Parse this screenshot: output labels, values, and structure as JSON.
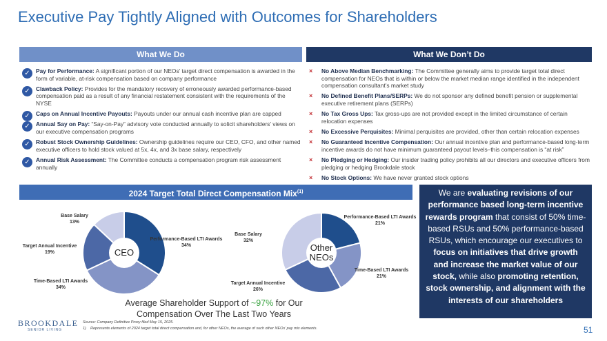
{
  "header": {
    "title": "Executive Pay Tightly Aligned with Outcomes for Shareholders"
  },
  "do": {
    "heading": "What We Do",
    "items": [
      {
        "term": "Pay for Performance:",
        "text": "A significant portion of our NEOs’ target direct compensation is awarded in the form of variable, at-risk compensation based on company performance"
      },
      {
        "term": "Clawback Policy:",
        "text": "Provides for the mandatory recovery of erroneously awarded performance-based compensation paid as a result of any financial restatement consistent with the requirements of the NYSE"
      },
      {
        "term": "Caps on Annual Incentive Payouts:",
        "text": "Payouts under our annual cash incentive plan are capped"
      },
      {
        "term": "Annual Say on Pay:",
        "text": "“Say-on-Pay” advisory vote conducted annually to solicit shareholders’ views on our executive compensation programs"
      },
      {
        "term": "Robust Stock Ownership Guidelines:",
        "text": "Ownership guidelines require our CEO, CFO, and other named executive officers to hold stock valued at 5x, 4x, and 3x base salary, respectively"
      },
      {
        "term": "Annual Risk Assessment:",
        "text": "The Committee conducts a compensation program risk assessment annually"
      }
    ]
  },
  "dont": {
    "heading": "What We Don’t Do",
    "items": [
      {
        "term": "No Above Median Benchmarking:",
        "text": "The Committee generally aims to provide target total direct compensation for NEOs that is within or below the market median range identified in the independent compensation consultant’s market study"
      },
      {
        "term": "No Defined Benefit Plans/SERPs:",
        "text": "We do not sponsor any defined benefit pension or supplemental executive retirement plans (SERPs)"
      },
      {
        "term": "No Tax Gross Ups:",
        "text": "Tax gross-ups are not provided except in the limited circumstance of certain relocation expenses"
      },
      {
        "term": "No Excessive Perquisites:",
        "text": "Minimal perquisites are provided, other than certain relocation expenses"
      },
      {
        "term": "No Guaranteed Incentive Compensation:",
        "text": "Our annual incentive plan and performance-based long-term incentive awards do not have minimum guaranteed payout levels–this compensation is “at risk”"
      },
      {
        "term": "No Pledging or Hedging:",
        "text": "Our insider trading policy prohibits all our directors and executive officers from pledging or hedging Brookdale stock"
      },
      {
        "term": "No Stock Options:",
        "text": "We have never granted stock options"
      }
    ]
  },
  "mix": {
    "title": "2024 Target Total Direct Compensation Mix",
    "note": "(1)"
  },
  "chart_data": [
    {
      "type": "pie",
      "center_label": "CEO",
      "categories": [
        "Performance-Based LTI Awards",
        "Time-Based LTI Awards",
        "Target Annual Incentive",
        "Base Salary"
      ],
      "values": [
        34,
        34,
        19,
        13
      ],
      "value_labels": [
        "34%",
        "34%",
        "19%",
        "13%"
      ],
      "colors": [
        "#1f4e8c",
        "#8494c6",
        "#4c68a6",
        "#c8cde8"
      ]
    },
    {
      "type": "pie",
      "center_label": "Other NEOs",
      "categories": [
        "Performance-Based LTI Awards",
        "Time-Based LTI Awards",
        "Target Annual Incentive",
        "Base Salary"
      ],
      "values": [
        21,
        21,
        26,
        32
      ],
      "value_labels": [
        "21%",
        "21%",
        "26%",
        "32%"
      ],
      "colors": [
        "#1f4e8c",
        "#8494c6",
        "#4c68a6",
        "#c8cde8"
      ]
    }
  ],
  "caption": {
    "segments": [
      {
        "text": "Average Shareholder Support of ",
        "highlight": false
      },
      {
        "text": "~97%",
        "highlight": true
      },
      {
        "text": " for Our Compensation Over The Last Two Years",
        "highlight": false
      }
    ]
  },
  "callout": {
    "segments": [
      {
        "text": "We are ",
        "bold": false
      },
      {
        "text": "evaluating revisions of our performance based long-term incentive rewards program",
        "bold": true
      },
      {
        "text": " that consist of 50% time-based RSUs and 50% performance-based RSUs, which encourage our executives to ",
        "bold": false
      },
      {
        "text": "focus on initiatives that drive growth and increase the market value of our stock,",
        "bold": true
      },
      {
        "text": " while also ",
        "bold": false
      },
      {
        "text": "promoting retention, stock ownership, and alignment with the interests of our shareholders",
        "bold": true
      }
    ]
  },
  "footer": {
    "logo": "BROOKDALE",
    "logo_sub": "SENIOR LIVING",
    "source": "Source: Company Definitive Proxy filed May 15, 2025.",
    "footnote_num": "1)",
    "footnote": "Represents elements of 2024 target total direct compensation and, for other NEOs, the average of such other NEOs’ pay mix elements.",
    "page": "51"
  }
}
